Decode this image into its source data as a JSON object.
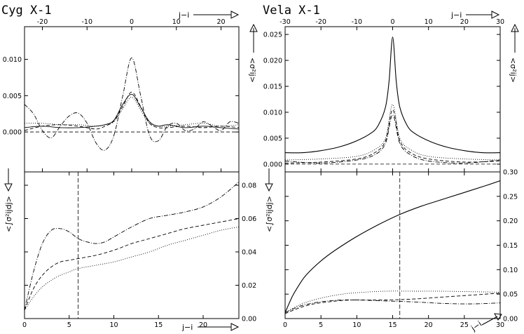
{
  "chart_data": [
    {
      "type": "line",
      "panel": "cyg-top",
      "title": "Cyg X-1",
      "xlabel_top": "j−i",
      "ylabel": "<σ²ij>",
      "xlim": [
        -24,
        24
      ],
      "ylim": [
        -0.0055,
        0.0145
      ],
      "xticks": [
        -20,
        -10,
        0,
        10,
        20
      ],
      "yticks": [
        0.0,
        0.005,
        0.01
      ],
      "ytick_labels": [
        "0.000",
        "0.005",
        "0.010"
      ],
      "hline": 0,
      "series": [
        {
          "style": "dashdot",
          "x": [
            -24,
            -22,
            -20,
            -18,
            -16,
            -14,
            -12,
            -10,
            -8,
            -6,
            -4,
            -2,
            0,
            2,
            4,
            6,
            8,
            10,
            12,
            14,
            16,
            18,
            20,
            22,
            24
          ],
          "y": [
            0.0038,
            0.0025,
            0.0002,
            -0.0008,
            0.0008,
            0.0022,
            0.0026,
            0.0012,
            -0.0015,
            -0.0025,
            -0.0005,
            0.005,
            0.0102,
            0.005,
            -0.0005,
            -0.0012,
            0.0008,
            0.0012,
            0.0002,
            0.0004,
            0.0014,
            0.0008,
            0.0002,
            0.0014,
            0.0012
          ]
        },
        {
          "style": "dashed",
          "x": [
            -24,
            -20,
            -16,
            -12,
            -8,
            -6,
            -4,
            -2,
            0,
            2,
            4,
            6,
            8,
            12,
            16,
            20,
            24
          ],
          "y": [
            0.0002,
            0.0008,
            0.001,
            0.0008,
            0.0004,
            0.0008,
            0.0015,
            0.0035,
            0.0055,
            0.0035,
            0.0012,
            0.0006,
            0.0006,
            0.0008,
            0.0006,
            0.0008,
            0.0006
          ]
        },
        {
          "style": "dotted",
          "x": [
            -24,
            -20,
            -16,
            -12,
            -8,
            -6,
            -4,
            -2,
            0,
            2,
            4,
            6,
            8,
            12,
            16,
            20,
            24
          ],
          "y": [
            0.0012,
            0.0012,
            0.001,
            0.001,
            0.0008,
            0.001,
            0.0014,
            0.0032,
            0.0048,
            0.003,
            0.0012,
            0.0008,
            0.0008,
            0.001,
            0.0012,
            0.0008,
            0.001
          ]
        },
        {
          "style": "solid-thin",
          "x": [
            -24,
            -20,
            -16,
            -12,
            -8,
            -6,
            -4,
            -2,
            0,
            2,
            4,
            6,
            8,
            12,
            16,
            20,
            24
          ],
          "y": [
            0.0006,
            0.0008,
            0.0006,
            0.0006,
            0.0008,
            0.001,
            0.0016,
            0.0038,
            0.0052,
            0.0034,
            0.0014,
            0.0008,
            0.001,
            0.0006,
            0.0008,
            0.0006,
            0.0004
          ]
        }
      ]
    },
    {
      "type": "line",
      "panel": "vela-top",
      "title": "Vela X-1",
      "xlabel_top": "j−i",
      "ylabel": "<σ²ij>",
      "xlim": [
        -30,
        30
      ],
      "ylim": [
        -0.0015,
        0.0265
      ],
      "xticks": [
        -30,
        -20,
        -10,
        0,
        10,
        20,
        30
      ],
      "yticks": [
        0.0,
        0.005,
        0.01,
        0.015,
        0.02,
        0.025
      ],
      "ytick_labels": [
        "0.000",
        "0.005",
        "0.010",
        "0.015",
        "0.020",
        "0.025"
      ],
      "hline": 0,
      "series": [
        {
          "style": "solid",
          "x": [
            -30,
            -25,
            -20,
            -15,
            -10,
            -6,
            -4,
            -2,
            -1,
            0,
            1,
            2,
            4,
            6,
            10,
            15,
            20,
            25,
            30
          ],
          "y": [
            0.0022,
            0.0022,
            0.0026,
            0.0033,
            0.0045,
            0.006,
            0.0075,
            0.011,
            0.016,
            0.0245,
            0.016,
            0.011,
            0.0075,
            0.006,
            0.0045,
            0.0033,
            0.0026,
            0.0022,
            0.0022
          ]
        },
        {
          "style": "dotted",
          "x": [
            -30,
            -20,
            -10,
            -5,
            -2,
            0,
            2,
            5,
            10,
            20,
            30
          ],
          "y": [
            0.0008,
            0.001,
            0.0015,
            0.0028,
            0.005,
            0.0115,
            0.005,
            0.0028,
            0.0015,
            0.001,
            0.0008
          ]
        },
        {
          "style": "dashed",
          "x": [
            -30,
            -20,
            -10,
            -5,
            -2,
            0,
            2,
            5,
            10,
            20,
            30
          ],
          "y": [
            0.0002,
            0.0004,
            0.001,
            0.0022,
            0.0045,
            0.0105,
            0.0045,
            0.0022,
            0.001,
            0.0004,
            0.0006
          ]
        },
        {
          "style": "dashdot",
          "x": [
            -30,
            -20,
            -10,
            -5,
            -2,
            0,
            2,
            5,
            10,
            20,
            30
          ],
          "y": [
            0.0006,
            0.0002,
            0.0008,
            0.0018,
            0.004,
            0.0095,
            0.004,
            0.0018,
            0.0006,
            0.0002,
            0.0008
          ]
        }
      ]
    },
    {
      "type": "line",
      "panel": "cyg-bottom",
      "xlabel": "j−i",
      "ylabel": "<∫σ²ijdj>",
      "xlim": [
        0,
        24
      ],
      "ylim": [
        0,
        0.088
      ],
      "xticks": [
        0,
        5,
        10,
        15,
        20
      ],
      "yticks": [
        0.0,
        0.02,
        0.04,
        0.06,
        0.08
      ],
      "ytick_labels": [
        "0.00",
        "0.02",
        "0.04",
        "0.06",
        "0.08"
      ],
      "vline": 6,
      "series": [
        {
          "style": "dashdot",
          "x": [
            0,
            1,
            2,
            3,
            4,
            5,
            6,
            7,
            8,
            9,
            10,
            12,
            14,
            16,
            18,
            20,
            22,
            24
          ],
          "y": [
            0.005,
            0.028,
            0.045,
            0.053,
            0.054,
            0.052,
            0.048,
            0.046,
            0.045,
            0.046,
            0.049,
            0.055,
            0.06,
            0.062,
            0.064,
            0.067,
            0.073,
            0.082
          ]
        },
        {
          "style": "dashed",
          "x": [
            0,
            1,
            2,
            3,
            4,
            5,
            6,
            8,
            10,
            12,
            14,
            16,
            18,
            20,
            22,
            24
          ],
          "y": [
            0.005,
            0.018,
            0.026,
            0.031,
            0.034,
            0.035,
            0.036,
            0.038,
            0.041,
            0.045,
            0.048,
            0.051,
            0.054,
            0.056,
            0.058,
            0.06
          ]
        },
        {
          "style": "dotted",
          "x": [
            0,
            1,
            2,
            3,
            4,
            5,
            6,
            8,
            10,
            12,
            14,
            16,
            18,
            20,
            22,
            24
          ],
          "y": [
            0.005,
            0.013,
            0.019,
            0.023,
            0.026,
            0.028,
            0.03,
            0.032,
            0.034,
            0.037,
            0.04,
            0.044,
            0.047,
            0.05,
            0.053,
            0.055
          ]
        }
      ]
    },
    {
      "type": "line",
      "panel": "vela-bottom",
      "xlabel": "j−i",
      "ylabel": "<∫σ²ijdj>",
      "xlim": [
        0,
        30
      ],
      "ylim": [
        0,
        0.3
      ],
      "xticks": [
        0,
        5,
        10,
        15,
        20,
        25,
        30
      ],
      "yticks": [
        0.0,
        0.05,
        0.1,
        0.15,
        0.2,
        0.25,
        0.3
      ],
      "ytick_labels": [
        "0.00",
        "0.05",
        "0.10",
        "0.15",
        "0.20",
        "0.25",
        "0.30"
      ],
      "vline": 16,
      "series": [
        {
          "style": "solid",
          "x": [
            0,
            1,
            2,
            3,
            5,
            7,
            10,
            13,
            16,
            19,
            22,
            25,
            28,
            30
          ],
          "y": [
            0.012,
            0.045,
            0.07,
            0.09,
            0.118,
            0.14,
            0.168,
            0.192,
            0.213,
            0.23,
            0.244,
            0.258,
            0.272,
            0.282
          ]
        },
        {
          "style": "dotted",
          "x": [
            0,
            2,
            4,
            6,
            8,
            10,
            14,
            18,
            22,
            26,
            30
          ],
          "y": [
            0.012,
            0.028,
            0.038,
            0.045,
            0.05,
            0.053,
            0.056,
            0.056,
            0.056,
            0.055,
            0.054
          ]
        },
        {
          "style": "dashed",
          "x": [
            0,
            2,
            4,
            6,
            8,
            10,
            14,
            18,
            22,
            26,
            30
          ],
          "y": [
            0.01,
            0.022,
            0.03,
            0.034,
            0.037,
            0.038,
            0.038,
            0.04,
            0.044,
            0.048,
            0.052
          ]
        },
        {
          "style": "dashdot",
          "x": [
            0,
            2,
            4,
            6,
            8,
            10,
            14,
            18,
            22,
            26,
            30
          ],
          "y": [
            0.012,
            0.025,
            0.032,
            0.036,
            0.038,
            0.038,
            0.036,
            0.034,
            0.031,
            0.03,
            0.032
          ]
        }
      ]
    }
  ]
}
